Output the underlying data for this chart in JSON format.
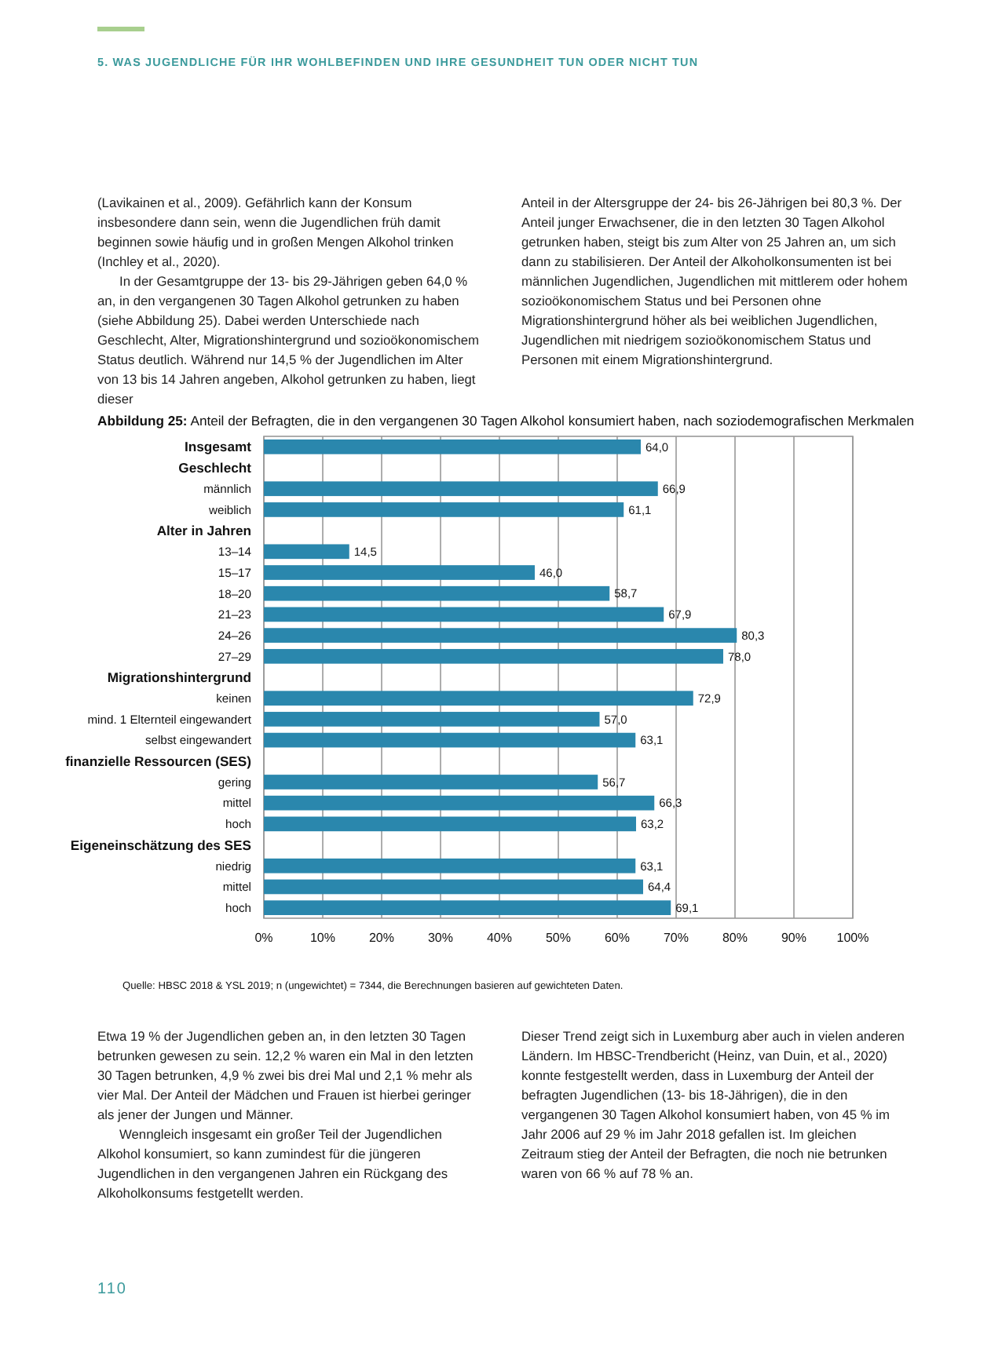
{
  "chart_data": {
    "type": "bar",
    "orientation": "horizontal",
    "title": "Abbildung 25: Anteil der Befragten, die in den vergangenen 30 Tagen Alkohol konsumiert haben, nach soziodemografischen Merkmalen",
    "categories": [
      "Insgesamt",
      "Geschlecht",
      "männlich",
      "weiblich",
      "Alter in Jahren",
      "13–14",
      "15–17",
      "18–20",
      "21–23",
      "24–26",
      "27–29",
      "Migrationshintergrund",
      "keinen",
      "mind. 1 Elternteil eingewandert",
      "selbst eingewandert",
      "finanzielle Ressourcen (SES)",
      "gering",
      "mittel",
      "hoch",
      "Eigeneinschätzung des SES",
      "niedrig",
      "mittel",
      "hoch"
    ],
    "values": [
      64.0,
      null,
      66.9,
      61.1,
      null,
      14.5,
      46.0,
      58.7,
      67.9,
      80.3,
      78.0,
      null,
      72.9,
      57.0,
      63.1,
      null,
      56.7,
      66.3,
      63.2,
      null,
      63.1,
      64.4,
      69.1
    ],
    "value_labels": [
      "64,0",
      null,
      "66,9",
      "61,1",
      null,
      "14,5",
      "46,0",
      "58,7",
      "67,9",
      "80,3",
      "78,0",
      null,
      "72,9",
      "57,0",
      "63,1",
      null,
      "56,7",
      "66,3",
      "63,2",
      null,
      "63,1",
      "64,4",
      "69,1"
    ],
    "color": "#2a87ad",
    "xlim": [
      0,
      100
    ],
    "xticks": [
      {
        "value": 0,
        "label": "0%"
      },
      {
        "value": 10,
        "label": "10%"
      },
      {
        "value": 20,
        "label": "20%"
      },
      {
        "value": 30,
        "label": "30%"
      },
      {
        "value": 40,
        "label": "40%"
      },
      {
        "value": 50,
        "label": "50%"
      },
      {
        "value": 60,
        "label": "60%"
      },
      {
        "value": 70,
        "label": "70%"
      },
      {
        "value": 80,
        "label": "80%"
      },
      {
        "value": 90,
        "label": "90%"
      },
      {
        "value": 100,
        "label": "100%"
      }
    ],
    "grid": "x",
    "annotations": [
      "5. WAS JUGENDLICHE FÜR IHR WOHLBEFINDEN UND IHRE GESUNDHEIT TUN ODER NICHT TUN",
      "(Lavikainen et al., 2009). Gefährlich kann der Konsum insbesondere dann sein, wenn die Jugendlichen früh damit beginnen sowie häufig und in großen Mengen Alkohol trinken (Inchley et al., 2020).",
      "In der Gesamtgruppe der 13- bis 29-Jährigen geben 64,0 % an, in den vergangenen 30 Tagen Alkohol getrunken zu haben (siehe Abbildung 25). Dabei werden Unterschiede nach Geschlecht, Alter, Migrationshintergrund und sozioökonomischem Status deutlich. Während nur 14,5 % der Jugendlichen im Alter von 13 bis 14 Jahren angeben, Alkohol getrunken zu haben, liegt dieser",
      "Anteil in der Altersgruppe der 24- bis 26-Jährigen bei 80,3 %. Der Anteil junger Erwachsener, die in den letzten 30 Tagen Alkohol getrunken haben, steigt bis zum Alter von 25 Jahren an, um sich dann zu stabilisieren. Der Anteil der Alkoholkonsumenten ist bei männlichen Jugendlichen, Jugendlichen mit mittlerem oder hohem sozioökonomischem Status und bei Personen ohne Migrationshintergrund höher als bei weiblichen Jugendlichen, Jugendlichen mit niedrigem sozioökonomischem Status und Personen mit einem Migrationshintergrund.",
      "Quelle: HBSC 2018 & YSL 2019; n (ungewichtet) = 7344, die Berechnungen basieren auf gewichteten Daten.",
      "Etwa 19 % der Jugendlichen geben an, in den letzten 30 Tagen betrunken gewesen zu sein. 12,2 % waren ein Mal in den letzten 30 Tagen betrunken, 4,9 % zwei bis drei Mal und 2,1 % mehr als vier Mal. Der Anteil der Mädchen und Frauen ist hierbei geringer als jener der Jungen und Männer.",
      "Wenngleich insgesamt ein großer Teil der Jugendlichen Alkohol konsumiert, so kann zumindest für die jüngeren Jugendlichen in den vergangenen Jahren ein Rückgang des Alkoholkonsums festgetellt werden.",
      "Dieser Trend zeigt sich in Luxemburg aber auch in vielen anderen Ländern. Im HBSC-Trendbericht (Heinz, van Duin, et al., 2020) konnte festgestellt werden, dass in Luxemburg der Anteil der befragten Jugendlichen (13- bis 18-Jährigen), die in den vergangenen 30 Tagen Alkohol konsumiert haben, von 45 % im Jahr 2006 auf 29 % im Jahr 2018 gefallen ist. Im gleichen Zeitraum stieg der Anteil der Befragten, die noch nie betrunken waren von 66 % auf 78 % an.",
      "110"
    ]
  }
}
